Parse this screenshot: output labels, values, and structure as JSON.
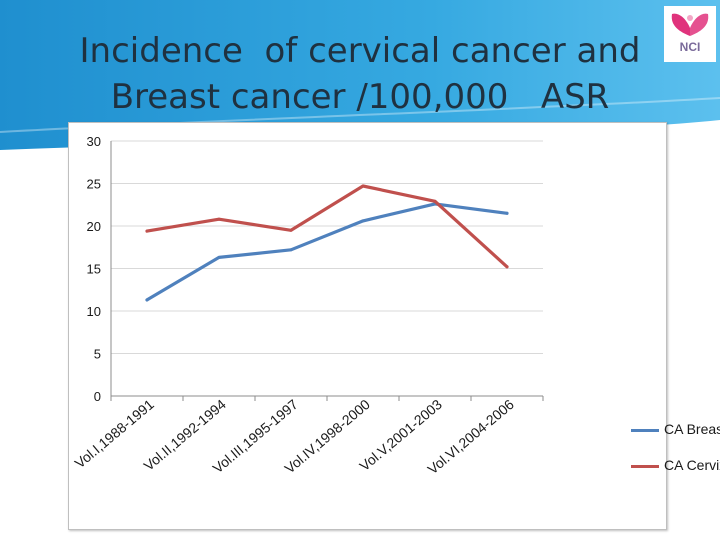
{
  "title_lines": [
    "Incidence  of cervical cancer and",
    "Breast cancer /100,000   ASR"
  ],
  "logo": {
    "text": "NCI"
  },
  "colors": {
    "header": "#2b9fd9",
    "breast": "#4f81bd",
    "cervix": "#c0504d",
    "grid": "#d9d9d9",
    "title": "#1f3140"
  },
  "chart_data": {
    "type": "line",
    "title": "",
    "xlabel": "",
    "ylabel": "",
    "categories": [
      "Vol.I,1988-1991",
      "Vol.II,1992-1994",
      "Vol.III,1995-1997",
      "Vol.IV,1998-2000",
      "Vol.V,2001-2003",
      "Vol.VI,2004-2006"
    ],
    "series": [
      {
        "name": "CA Breast",
        "values": [
          11.3,
          16.3,
          17.2,
          20.6,
          22.6,
          21.5
        ]
      },
      {
        "name": "CA Cervix",
        "values": [
          19.4,
          20.8,
          19.5,
          24.7,
          22.9,
          15.2
        ]
      }
    ],
    "ylim": [
      0,
      30
    ],
    "yticks": [
      "0",
      "5",
      "10",
      "15",
      "20",
      "25",
      "30"
    ],
    "grid": true,
    "legend": "right"
  }
}
